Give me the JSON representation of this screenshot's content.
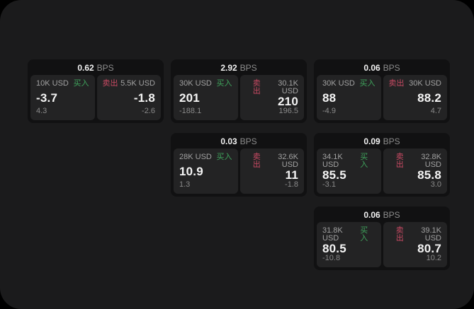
{
  "colors": {
    "buy_green": "#3fa35c",
    "sell_red": "#c84a63",
    "panel_bg": "#1b1b1c",
    "card_bg": "#111112",
    "subcard_bg": "#232324"
  },
  "cards": [
    {
      "bps_value": "0.62",
      "bps_unit": "BPS",
      "buy": {
        "size": "10K USD",
        "side_label": "买入",
        "value": "-3.7",
        "change": "4.3"
      },
      "sell": {
        "size": "5.5K USD",
        "side_label": "卖出",
        "value": "-1.8",
        "change": "-2.6"
      }
    },
    {
      "bps_value": "2.92",
      "bps_unit": "BPS",
      "buy": {
        "size": "30K USD",
        "side_label": "买入",
        "value": "201",
        "change": "-188.1"
      },
      "sell": {
        "size": "30.1K USD",
        "side_label": "卖出",
        "value": "210",
        "change": "196.5"
      }
    },
    {
      "bps_value": "0.06",
      "bps_unit": "BPS",
      "buy": {
        "size": "30K USD",
        "side_label": "买入",
        "value": "88",
        "change": "-4.9"
      },
      "sell": {
        "size": "30K USD",
        "side_label": "卖出",
        "value": "88.2",
        "change": "4.7"
      }
    },
    {
      "bps_value": "0.03",
      "bps_unit": "BPS",
      "buy": {
        "size": "28K USD",
        "side_label": "买入",
        "value": "10.9",
        "change": "1.3"
      },
      "sell": {
        "size": "32.6K USD",
        "side_label": "卖出",
        "value": "11",
        "change": "-1.8"
      }
    },
    {
      "bps_value": "0.09",
      "bps_unit": "BPS",
      "buy": {
        "size": "34.1K USD",
        "side_label": "买入",
        "value": "85.5",
        "change": "-3.1"
      },
      "sell": {
        "size": "32.8K USD",
        "side_label": "卖出",
        "value": "85.8",
        "change": "3.0"
      }
    },
    {
      "bps_value": "0.06",
      "bps_unit": "BPS",
      "buy": {
        "size": "31.8K USD",
        "side_label": "买入",
        "value": "80.5",
        "change": "-10.8"
      },
      "sell": {
        "size": "39.1K USD",
        "side_label": "卖出",
        "value": "80.7",
        "change": "10.2"
      }
    }
  ]
}
